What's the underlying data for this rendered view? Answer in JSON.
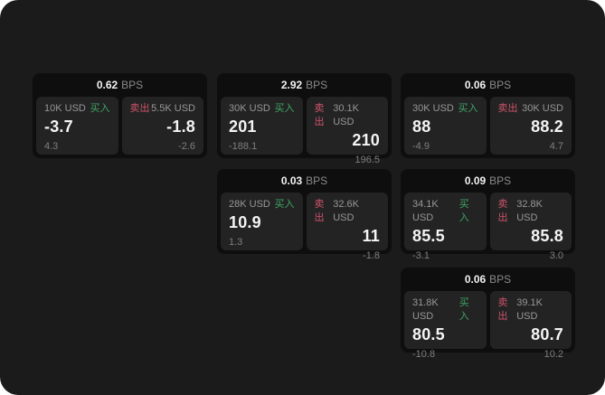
{
  "colors": {
    "buy_green": "#3fa661",
    "sell_red": "#cd5468"
  },
  "cards": [
    {
      "bps": "0.62",
      "unit": "BPS",
      "buy": {
        "amount": "10K USD",
        "side": "买入",
        "value": "-3.7",
        "sub": "4.3"
      },
      "sell": {
        "side": "卖出",
        "amount": "5.5K USD",
        "value": "-1.8",
        "sub": "-2.6"
      }
    },
    {
      "bps": "2.92",
      "unit": "BPS",
      "buy": {
        "amount": "30K USD",
        "side": "买入",
        "value": "201",
        "sub": "-188.1"
      },
      "sell": {
        "side": "卖出",
        "amount": "30.1K USD",
        "value": "210",
        "sub": "196.5"
      }
    },
    {
      "bps": "0.06",
      "unit": "BPS",
      "buy": {
        "amount": "30K USD",
        "side": "买入",
        "value": "88",
        "sub": "-4.9"
      },
      "sell": {
        "side": "卖出",
        "amount": "30K USD",
        "value": "88.2",
        "sub": "4.7"
      }
    },
    {
      "bps": "0.03",
      "unit": "BPS",
      "buy": {
        "amount": "28K USD",
        "side": "买入",
        "value": "10.9",
        "sub": "1.3"
      },
      "sell": {
        "side": "卖出",
        "amount": "32.6K USD",
        "value": "11",
        "sub": "-1.8"
      }
    },
    {
      "bps": "0.09",
      "unit": "BPS",
      "buy": {
        "amount": "34.1K USD",
        "side": "买入",
        "value": "85.5",
        "sub": "-3.1"
      },
      "sell": {
        "side": "卖出",
        "amount": "32.8K USD",
        "value": "85.8",
        "sub": "3.0"
      }
    },
    {
      "bps": "0.06",
      "unit": "BPS",
      "buy": {
        "amount": "31.8K USD",
        "side": "买入",
        "value": "80.5",
        "sub": "-10.8"
      },
      "sell": {
        "side": "卖出",
        "amount": "39.1K USD",
        "value": "80.7",
        "sub": "10.2"
      }
    }
  ]
}
